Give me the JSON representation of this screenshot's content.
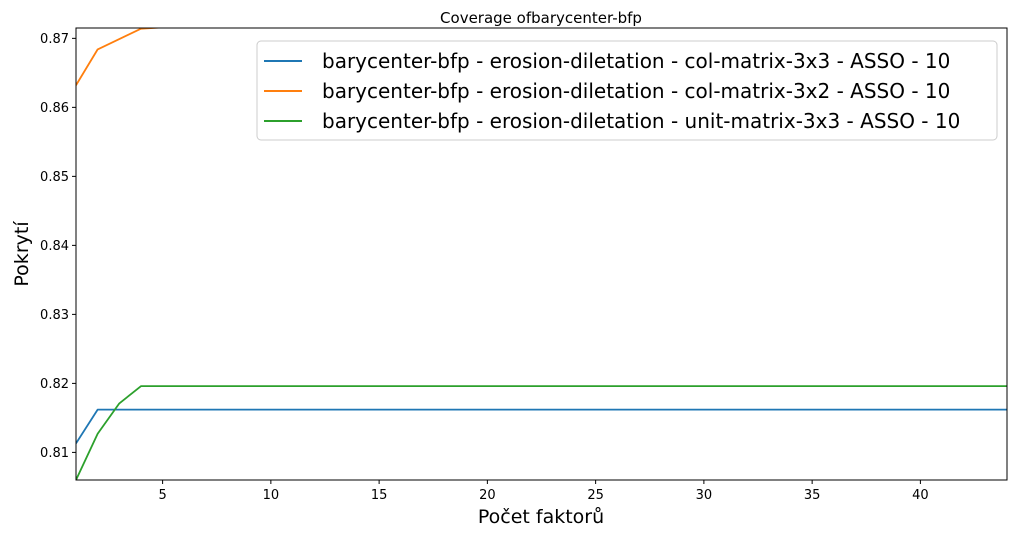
{
  "chart_data": {
    "type": "line",
    "title": "Coverage ofbarycenter-bfp",
    "xlabel": "Počet faktorů",
    "ylabel": "Pokrytí",
    "xlim": [
      1,
      44
    ],
    "ylim": [
      0.806,
      0.8715
    ],
    "xticks": [
      5,
      10,
      15,
      20,
      25,
      30,
      35,
      40
    ],
    "yticks": [
      0.81,
      0.82,
      0.83,
      0.84,
      0.85,
      0.86,
      0.87
    ],
    "grid": false,
    "legend_position": "top-right",
    "series": [
      {
        "name": "barycenter-bfp - erosion-diletation - col-matrix-3x3 - ASSO - 10",
        "color": "#1f77b4",
        "x": [
          1,
          2,
          3,
          4,
          5,
          10,
          15,
          20,
          25,
          30,
          35,
          40,
          44
        ],
        "y": [
          0.8113,
          0.8162,
          0.8162,
          0.8162,
          0.8162,
          0.8162,
          0.8162,
          0.8162,
          0.8162,
          0.8162,
          0.8162,
          0.8162,
          0.8162
        ]
      },
      {
        "name": "barycenter-bfp - erosion-diletation - col-matrix-3x2 - ASSO - 10",
        "color": "#ff7f0e",
        "x": [
          1,
          2,
          3,
          4,
          5,
          10,
          15,
          20,
          25,
          30,
          35,
          40,
          44
        ],
        "y": [
          0.8632,
          0.8684,
          0.8699,
          0.8714,
          0.8716,
          0.8716,
          0.8716,
          0.8716,
          0.8716,
          0.8716,
          0.8716,
          0.8716,
          0.8716
        ]
      },
      {
        "name": "barycenter-bfp - erosion-diletation - unit-matrix-3x3 - ASSO - 10",
        "color": "#2ca02c",
        "x": [
          1,
          2,
          3,
          4,
          5,
          10,
          15,
          20,
          25,
          30,
          35,
          40,
          44
        ],
        "y": [
          0.806,
          0.8127,
          0.8171,
          0.8196,
          0.8196,
          0.8196,
          0.8196,
          0.8196,
          0.8196,
          0.8196,
          0.8196,
          0.8196,
          0.8196
        ]
      }
    ]
  }
}
